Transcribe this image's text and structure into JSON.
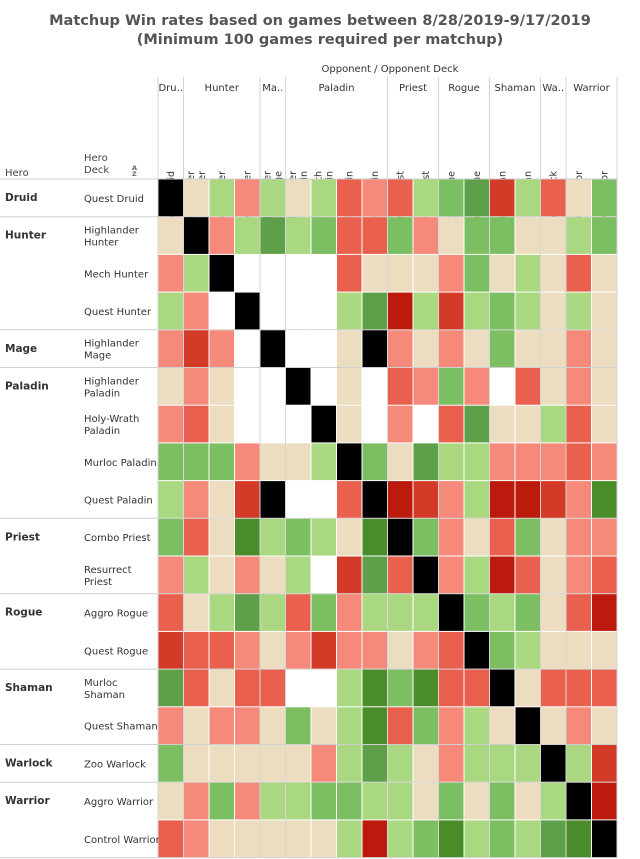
{
  "title": {
    "line1": "Matchup Win rates based on games between 8/28/2019-9/17/2019",
    "line2": "(Minimum 100 games required per matchup)"
  },
  "labels": {
    "opponent_header": "Opponent  /  Opponent Deck",
    "hero_col": "Hero",
    "deck_col": "Hero\nDeck",
    "sort_icon_text": "A\nZ"
  },
  "colors": {
    "black": "#000000",
    "white": "#ffffff",
    "beige": "#ecdcc0",
    "light_green": "#a9d880",
    "green": "#7cbf63",
    "dark_green": "#5ea04a",
    "deep_green": "#4a8c2a",
    "salmon": "#f58a7a",
    "red": "#e9604e",
    "dark_red": "#d43a28",
    "deep_red": "#bb1a0c"
  },
  "chart_data": {
    "type": "heatmap",
    "title": "Matchup Win rates based on games between 8/28/2019-9/17/2019",
    "subtitle": "(Minimum 100 games required per matchup)",
    "x_axis_label": "Opponent  /  Opponent Deck",
    "y_axis_label": "Hero / Hero Deck",
    "value_encoding": "color class (black = mirror matchup, white = fewer than 100 games)",
    "opponent_groups": [
      {
        "hero": "Dru..",
        "span": 1
      },
      {
        "hero": "Hunter",
        "span": 3
      },
      {
        "hero": "Ma..",
        "span": 1
      },
      {
        "hero": "Paladin",
        "span": 4
      },
      {
        "hero": "Priest",
        "span": 2
      },
      {
        "hero": "Rogue",
        "span": 2
      },
      {
        "hero": "Shaman",
        "span": 2
      },
      {
        "hero": "Wa..",
        "span": 1
      },
      {
        "hero": "Warrior",
        "span": 2
      }
    ],
    "columns": [
      "Quest Druid",
      "Highlander\nHunter",
      "Mech Hunter",
      "Quest Hunter",
      "Highlander\nMage",
      "Highlander\nPaladin",
      "Holy-Wrath\nPaladin",
      "Murloc Paladin",
      "Quest Paladin",
      "Combo Priest",
      "Resurrect Priest",
      "Aggro Rogue",
      "Quest Rogue",
      "Murloc Shaman",
      "Quest Shaman",
      "Zoo Warlock",
      "Aggro Warrior",
      "Control Warrior"
    ],
    "hero_groups": [
      {
        "hero": "Druid",
        "span": 1
      },
      {
        "hero": "Hunter",
        "span": 3
      },
      {
        "hero": "Mage",
        "span": 1
      },
      {
        "hero": "Paladin",
        "span": 4
      },
      {
        "hero": "Priest",
        "span": 2
      },
      {
        "hero": "Rogue",
        "span": 2
      },
      {
        "hero": "Shaman",
        "span": 2
      },
      {
        "hero": "Warlock",
        "span": 1
      },
      {
        "hero": "Warrior",
        "span": 2
      }
    ],
    "rows": [
      {
        "deck": "Quest Druid",
        "cells": [
          "K",
          "T",
          "L",
          "S",
          "L",
          "T",
          "L",
          "R",
          "S",
          "R",
          "L",
          "G",
          "D",
          "X",
          "L",
          "R",
          "T",
          "G"
        ]
      },
      {
        "deck": "Highlander\nHunter",
        "cells": [
          "T",
          "K",
          "S",
          "L",
          "D",
          "L",
          "G",
          "R",
          "R",
          "G",
          "S",
          "T",
          "G",
          "G",
          "T",
          "T",
          "L",
          "G"
        ]
      },
      {
        "deck": "Mech Hunter",
        "cells": [
          "S",
          "L",
          "K",
          "W",
          "W",
          "W",
          "W",
          "R",
          "T",
          "T",
          "T",
          "S",
          "G",
          "T",
          "L",
          "T",
          "R",
          "T"
        ]
      },
      {
        "deck": "Quest Hunter",
        "cells": [
          "L",
          "S",
          "W",
          "K",
          "W",
          "W",
          "W",
          "L",
          "D",
          "Y",
          "L",
          "X",
          "L",
          "G",
          "L",
          "T",
          "L",
          "T"
        ]
      },
      {
        "deck": "Highlander\nMage",
        "cells": [
          "S",
          "X",
          "S",
          "W",
          "K",
          "W",
          "W",
          "T",
          "K",
          "S",
          "T",
          "S",
          "T",
          "G",
          "T",
          "T",
          "S",
          "T"
        ]
      },
      {
        "deck": "Highlander\nPaladin",
        "cells": [
          "T",
          "S",
          "T",
          "W",
          "W",
          "K",
          "W",
          "T",
          "W",
          "R",
          "S",
          "G",
          "S",
          "W",
          "R",
          "T",
          "S",
          "T"
        ]
      },
      {
        "deck": "Holy-Wrath\nPaladin",
        "cells": [
          "S",
          "R",
          "T",
          "W",
          "W",
          "W",
          "K",
          "T",
          "W",
          "S",
          "W",
          "R",
          "D",
          "T",
          "T",
          "L",
          "R",
          "T"
        ]
      },
      {
        "deck": "Murloc Paladin",
        "cells": [
          "G",
          "G",
          "G",
          "S",
          "T",
          "T",
          "L",
          "K",
          "G",
          "T",
          "D",
          "L",
          "L",
          "S",
          "S",
          "S",
          "R",
          "S"
        ]
      },
      {
        "deck": "Quest Paladin",
        "cells": [
          "L",
          "S",
          "T",
          "X",
          "K",
          "W",
          "W",
          "R",
          "K",
          "Y",
          "X",
          "S",
          "L",
          "Y",
          "Y",
          "X",
          "S",
          "E"
        ]
      },
      {
        "deck": "Combo Priest",
        "cells": [
          "G",
          "R",
          "T",
          "E",
          "L",
          "G",
          "L",
          "T",
          "E",
          "K",
          "G",
          "S",
          "T",
          "R",
          "G",
          "T",
          "S",
          "S"
        ]
      },
      {
        "deck": "Resurrect\nPriest",
        "cells": [
          "S",
          "L",
          "T",
          "S",
          "T",
          "L",
          "W",
          "X",
          "D",
          "R",
          "K",
          "S",
          "L",
          "Y",
          "R",
          "T",
          "S",
          "R"
        ]
      },
      {
        "deck": "Aggro Rogue",
        "cells": [
          "R",
          "T",
          "L",
          "D",
          "L",
          "R",
          "G",
          "S",
          "L",
          "L",
          "L",
          "K",
          "G",
          "L",
          "G",
          "T",
          "R",
          "Y"
        ]
      },
      {
        "deck": "Quest Rogue",
        "cells": [
          "X",
          "R",
          "R",
          "S",
          "T",
          "S",
          "X",
          "S",
          "S",
          "T",
          "S",
          "R",
          "K",
          "G",
          "L",
          "T",
          "T",
          "T"
        ]
      },
      {
        "deck": "Murloc\nShaman",
        "cells": [
          "D",
          "R",
          "T",
          "R",
          "R",
          "W",
          "W",
          "L",
          "E",
          "G",
          "E",
          "R",
          "R",
          "K",
          "T",
          "R",
          "R",
          "R"
        ]
      },
      {
        "deck": "Quest Shaman",
        "cells": [
          "S",
          "T",
          "S",
          "S",
          "T",
          "G",
          "T",
          "L",
          "E",
          "R",
          "G",
          "S",
          "L",
          "T",
          "K",
          "T",
          "S",
          "T"
        ]
      },
      {
        "deck": "Zoo Warlock",
        "cells": [
          "G",
          "T",
          "T",
          "T",
          "T",
          "T",
          "S",
          "L",
          "D",
          "L",
          "T",
          "S",
          "L",
          "L",
          "L",
          "K",
          "L",
          "X"
        ]
      },
      {
        "deck": "Aggro Warrior",
        "cells": [
          "T",
          "S",
          "G",
          "S",
          "L",
          "L",
          "G",
          "G",
          "L",
          "L",
          "T",
          "G",
          "T",
          "G",
          "T",
          "L",
          "K",
          "Y"
        ]
      },
      {
        "deck": "Control Warrior",
        "cells": [
          "R",
          "S",
          "T",
          "T",
          "T",
          "T",
          "T",
          "L",
          "Y",
          "L",
          "G",
          "E",
          "L",
          "G",
          "L",
          "D",
          "E",
          "K"
        ]
      }
    ]
  }
}
